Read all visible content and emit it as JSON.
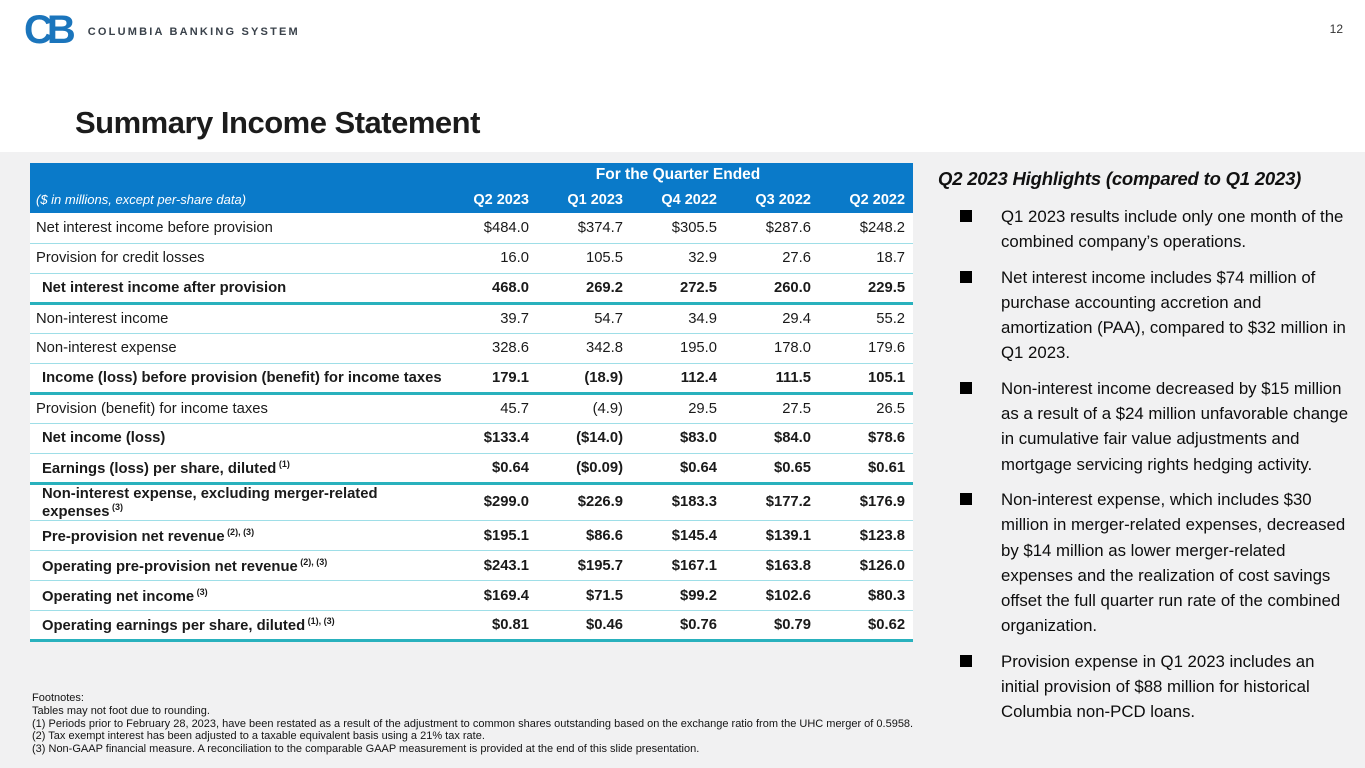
{
  "page": {
    "number": "12"
  },
  "brand": {
    "logo_monogram": "CB",
    "name": "COLUMBIA BANKING SYSTEM"
  },
  "title": "Summary Income Statement",
  "colors": {
    "header_blue": "#0a7ac9",
    "teal": "#29b1bd",
    "row_line": "#9edee7",
    "logo_blue": "#1b75bc",
    "panel_bg": "#f1f1f2"
  },
  "table": {
    "span_header": "For the Quarter Ended",
    "units_note": "($ in millions, except per-share data)",
    "columns": [
      "Q2 2023",
      "Q1 2023",
      "Q4 2022",
      "Q3 2022",
      "Q2 2022"
    ],
    "rows": [
      {
        "label": "Net interest income before provision",
        "sup": "",
        "values": [
          "$484.0",
          "$374.7",
          "$305.5",
          "$287.6",
          "$248.2"
        ],
        "bold": false,
        "border": "thin"
      },
      {
        "label": "Provision for credit losses",
        "sup": "",
        "values": [
          "16.0",
          "105.5",
          "32.9",
          "27.6",
          "18.7"
        ],
        "bold": false,
        "border": "thin"
      },
      {
        "label": "Net interest income after provision",
        "sup": "",
        "values": [
          "468.0",
          "269.2",
          "272.5",
          "260.0",
          "229.5"
        ],
        "bold": true,
        "border": "thick"
      },
      {
        "label": "Non-interest income",
        "sup": "",
        "values": [
          "39.7",
          "54.7",
          "34.9",
          "29.4",
          "55.2"
        ],
        "bold": false,
        "border": "thin"
      },
      {
        "label": "Non-interest expense",
        "sup": "",
        "values": [
          "328.6",
          "342.8",
          "195.0",
          "178.0",
          "179.6"
        ],
        "bold": false,
        "border": "thin"
      },
      {
        "label": "Income (loss) before provision (benefit) for income taxes",
        "sup": "",
        "values": [
          "179.1",
          "(18.9)",
          "112.4",
          "111.5",
          "105.1"
        ],
        "bold": true,
        "border": "thick"
      },
      {
        "label": "Provision (benefit) for income taxes",
        "sup": "",
        "values": [
          "45.7",
          "(4.9)",
          "29.5",
          "27.5",
          "26.5"
        ],
        "bold": false,
        "border": "thin"
      },
      {
        "label": "Net income (loss)",
        "sup": "",
        "values": [
          "$133.4",
          "($14.0)",
          "$83.0",
          "$84.0",
          "$78.6"
        ],
        "bold": true,
        "border": "thin"
      },
      {
        "label": "Earnings (loss) per share, diluted",
        "sup": "(1)",
        "values": [
          "$0.64",
          "($0.09)",
          "$0.64",
          "$0.65",
          "$0.61"
        ],
        "bold": true,
        "border": "thick"
      },
      {
        "label": "Non-interest expense, excluding merger-related expenses",
        "sup": "(3)",
        "values": [
          "$299.0",
          "$226.9",
          "$183.3",
          "$177.2",
          "$176.9"
        ],
        "bold": true,
        "border": "thin"
      },
      {
        "label": "Pre-provision net revenue",
        "sup": "(2), (3)",
        "values": [
          "$195.1",
          "$86.6",
          "$145.4",
          "$139.1",
          "$123.8"
        ],
        "bold": true,
        "border": "thin"
      },
      {
        "label": "Operating pre-provision net revenue",
        "sup": "(2), (3)",
        "values": [
          "$243.1",
          "$195.7",
          "$167.1",
          "$163.8",
          "$126.0"
        ],
        "bold": true,
        "border": "thin"
      },
      {
        "label": "Operating net income",
        "sup": "(3)",
        "values": [
          "$169.4",
          "$71.5",
          "$99.2",
          "$102.6",
          "$80.3"
        ],
        "bold": true,
        "border": "thin"
      },
      {
        "label": "Operating earnings per share, diluted",
        "sup": "(1), (3)",
        "values": [
          "$0.81",
          "$0.46",
          "$0.76",
          "$0.79",
          "$0.62"
        ],
        "bold": true,
        "border": "thick"
      }
    ]
  },
  "footnotes": {
    "heading": "Footnotes:",
    "lines": [
      "Tables may not foot due to rounding.",
      "(1) Periods prior to February 28, 2023, have been restated as a result of the adjustment to common shares outstanding based on the exchange ratio from the UHC merger of 0.5958.",
      "(2) Tax exempt interest has been adjusted to a taxable equivalent basis using a 21% tax rate.",
      "(3) Non-GAAP financial measure.  A reconciliation to the comparable GAAP measurement is provided at the end of this slide presentation."
    ]
  },
  "highlights": {
    "heading": "Q2 2023 Highlights (compared to Q1 2023)",
    "bullets": [
      "Q1 2023 results include only one month of the combined company’s operations.",
      "Net interest income includes $74 million of purchase accounting accretion and amortization (PAA), compared to $32 million in Q1 2023.",
      "Non-interest income decreased by $15 million as a result of a $24 million unfavorable change in cumulative fair value adjustments and mortgage servicing rights hedging activity.",
      "Non-interest expense, which includes $30 million in merger-related expenses, decreased by $14 million as lower merger-related expenses and the realization of cost savings offset the full quarter run rate of the combined organization.",
      "Provision expense in Q1 2023 includes an initial provision of $88 million for historical Columbia non-PCD loans."
    ]
  }
}
